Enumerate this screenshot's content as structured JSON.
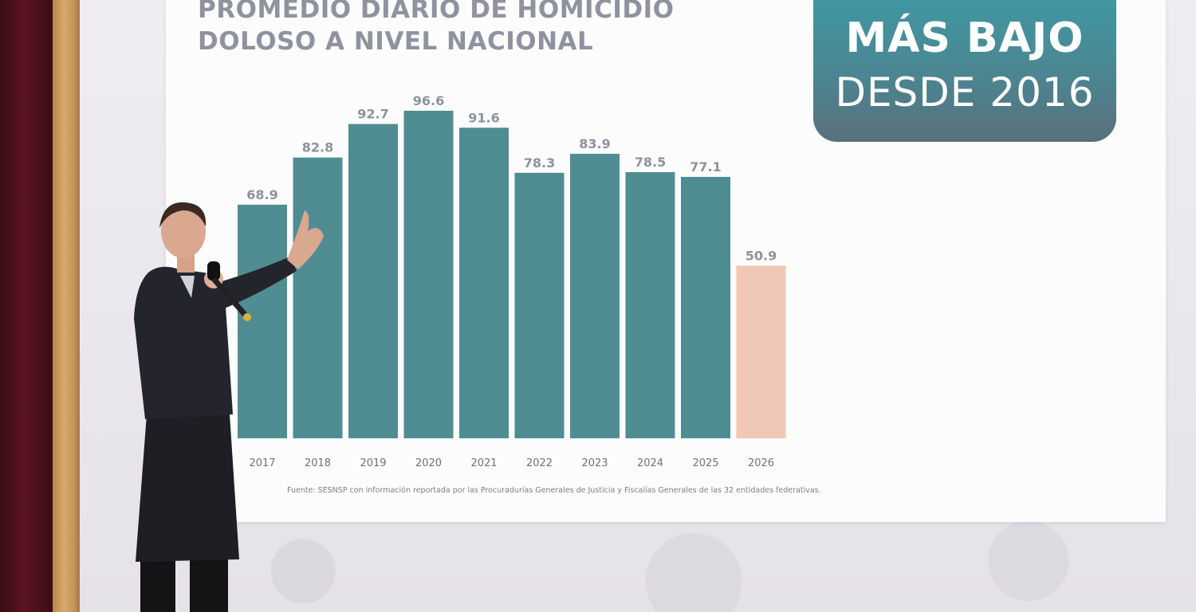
{
  "chart_data": {
    "type": "bar",
    "title": "PROMEDIO DIARIO DE HOMICIDIO DOLOSO A NIVEL NACIONAL",
    "categories": [
      "2017",
      "2018",
      "2019",
      "2020",
      "2021",
      "2022",
      "2023",
      "2024",
      "2025",
      "2026"
    ],
    "values": [
      68.9,
      82.8,
      92.7,
      96.6,
      91.6,
      78.3,
      83.9,
      78.5,
      77.1,
      50.9
    ],
    "value_labels": [
      "68.9",
      "82.8",
      "92.7",
      "96.6",
      "91.6",
      "78.3",
      "83.9",
      "78.5",
      "77.1",
      "50.9"
    ],
    "xlabel": "",
    "ylabel": "",
    "ylim": [
      0,
      96.6
    ],
    "grid": false,
    "colors": {
      "bar": "#4f8d93",
      "highlight_bar": "#f1c7b8",
      "highlight_category": "2026",
      "value_label": "#8f929f",
      "tick_label": "#6f727c"
    }
  },
  "badge": {
    "line1": "MÁS BAJO",
    "line2": "DESDE 2016"
  },
  "source": "Fuente: SESNSP con información reportada por las Procuradurías Generales de Justicia y Fiscalías Generales de las 32 entidades federativas."
}
